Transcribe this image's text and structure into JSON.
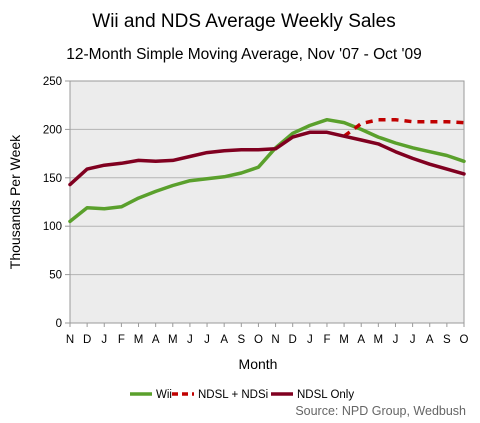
{
  "chart_data": {
    "type": "line",
    "title": "Wii and NDS Average Weekly Sales",
    "subtitle": "12-Month Simple Moving Average, Nov '07 - Oct '09",
    "xlabel": "Month",
    "ylabel": "Thousands Per Week",
    "ylim": [
      0,
      250
    ],
    "yticks": [
      0,
      50,
      100,
      150,
      200,
      250
    ],
    "grid": true,
    "categories": [
      "N",
      "D",
      "J",
      "F",
      "M",
      "A",
      "M",
      "J",
      "J",
      "A",
      "S",
      "O",
      "N",
      "D",
      "J",
      "F",
      "M",
      "A",
      "M",
      "J",
      "J",
      "A",
      "S",
      "O"
    ],
    "legend_position": "bottom",
    "series": [
      {
        "name": "Wii",
        "color": "#5aa02c",
        "style": "solid",
        "values": [
          105,
          119,
          118,
          120,
          129,
          136,
          142,
          147,
          149,
          151,
          155,
          161,
          181,
          196,
          204,
          210,
          207,
          200,
          192,
          186,
          181,
          177,
          173,
          167
        ]
      },
      {
        "name": "NDSL + NDSi",
        "color": "#c00000",
        "style": "dashed",
        "values": [
          null,
          null,
          null,
          null,
          null,
          null,
          null,
          null,
          null,
          null,
          null,
          null,
          null,
          null,
          null,
          null,
          193,
          206,
          210,
          210,
          208,
          208,
          208,
          207
        ]
      },
      {
        "name": "NDSL Only",
        "color": "#800020",
        "style": "solid",
        "values": [
          143,
          159,
          163,
          165,
          168,
          167,
          168,
          172,
          176,
          178,
          179,
          179,
          180,
          192,
          197,
          197,
          193,
          189,
          185,
          177,
          170,
          164,
          159,
          154
        ]
      }
    ],
    "source": "Source: NPD Group, Wedbush"
  }
}
